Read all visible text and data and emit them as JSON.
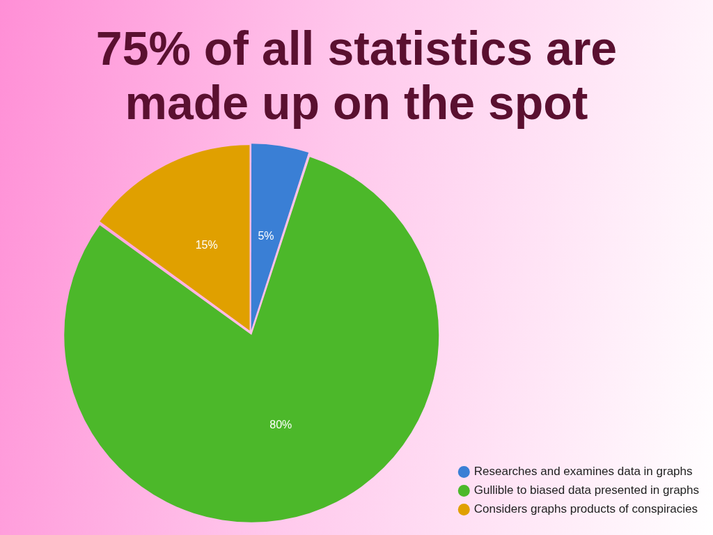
{
  "chart_data": {
    "type": "pie",
    "title": "75% of all statistics are made up on the spot",
    "categories": [
      "Researches and examines data in graphs",
      "Gullible to biased data presented in graphs",
      "Considers graphs products of conspiracies"
    ],
    "values": [
      5,
      80,
      15
    ],
    "colors": [
      "#3a7fd5",
      "#4cb82a",
      "#e0a000"
    ],
    "value_labels": [
      "5%",
      "80%",
      "15%"
    ],
    "legend": "bottom right"
  }
}
